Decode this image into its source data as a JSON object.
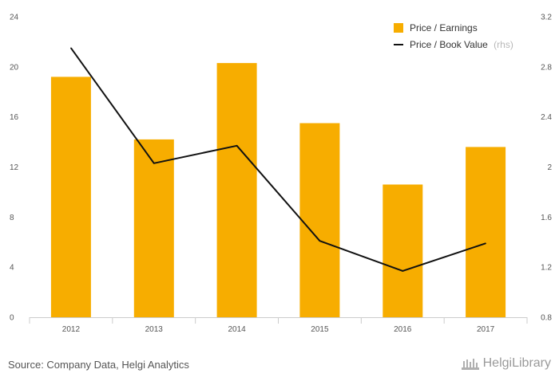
{
  "chart_data": {
    "type": "bar",
    "categories": [
      "2012",
      "2013",
      "2014",
      "2015",
      "2016",
      "2017"
    ],
    "series": [
      {
        "name": "Price / Earnings",
        "type": "bar",
        "axis": "left",
        "values": [
          19.2,
          14.2,
          20.3,
          15.5,
          10.6,
          13.6
        ]
      },
      {
        "name": "Price / Book Value",
        "name_note": "(rhs)",
        "type": "line",
        "axis": "right",
        "values": [
          2.95,
          2.03,
          2.17,
          1.41,
          1.17,
          1.39
        ]
      }
    ],
    "y_left": {
      "lim": [
        0,
        24
      ],
      "ticks": [
        "0",
        "4",
        "8",
        "12",
        "16",
        "20",
        "24"
      ]
    },
    "y_right": {
      "lim": [
        0.8,
        3.2
      ],
      "ticks": [
        "0.8",
        "1.2",
        "1.6",
        "2",
        "2.4",
        "2.8",
        "3.2"
      ]
    },
    "grid": false,
    "legend_position": "top-right",
    "colors": {
      "bar": "#f7ad00",
      "line": "#111111",
      "axis": "#cccccc"
    }
  },
  "footer": {
    "source": "Source: Company Data, Helgi Analytics",
    "brand": "HelgiLibrary"
  }
}
